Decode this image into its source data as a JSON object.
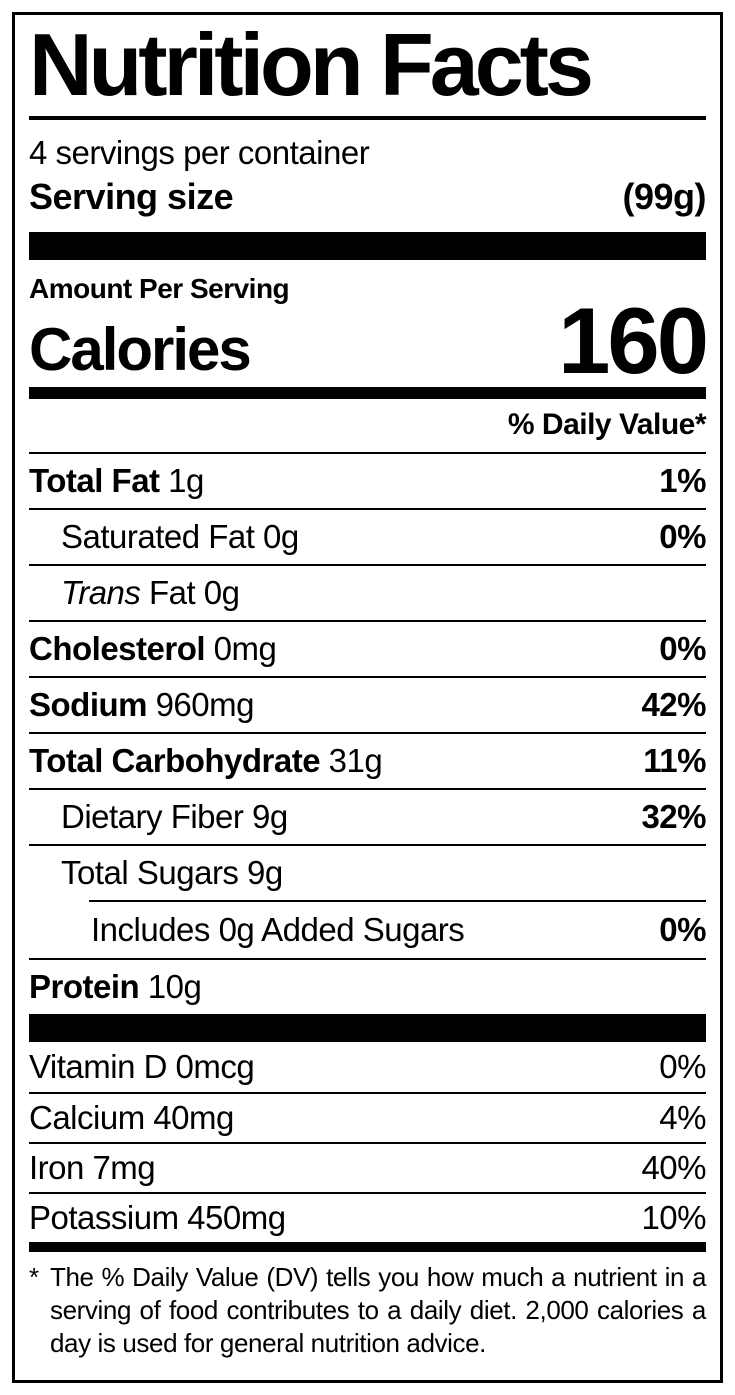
{
  "header": {
    "title": "Nutrition Facts",
    "servings_per_container": "4 servings per container",
    "serving_size_label": "Serving size",
    "serving_size_value": "(99g)"
  },
  "calories": {
    "section_label": "Amount Per Serving",
    "label": "Calories",
    "value": "160"
  },
  "daily_value_header": "% Daily Value*",
  "nutrients": [
    {
      "name": "Total Fat",
      "amount": "1g",
      "dv": "1%"
    },
    {
      "name": "Saturated Fat",
      "amount": "0g",
      "dv": "0%"
    },
    {
      "name_italic": "Trans",
      "name": "Fat",
      "amount": "0g",
      "dv": ""
    },
    {
      "name": "Cholesterol",
      "amount": "0mg",
      "dv": "0%"
    },
    {
      "name": "Sodium",
      "amount": "960mg",
      "dv": "42%"
    },
    {
      "name": "Total Carbohydrate",
      "amount": "31g",
      "dv": "11%"
    },
    {
      "name": "Dietary Fiber",
      "amount": "9g",
      "dv": "32%"
    },
    {
      "name": "Total Sugars",
      "amount": "9g",
      "dv": ""
    },
    {
      "name": "Includes 0g Added Sugars",
      "amount": "",
      "dv": "0%"
    },
    {
      "name": "Protein",
      "amount": "10g",
      "dv": ""
    }
  ],
  "micronutrients": [
    {
      "name": "Vitamin D",
      "amount": "0mcg",
      "dv": "0%"
    },
    {
      "name": "Calcium",
      "amount": "40mg",
      "dv": "4%"
    },
    {
      "name": "Iron",
      "amount": "7mg",
      "dv": "40%"
    },
    {
      "name": "Potassium",
      "amount": "450mg",
      "dv": "10%"
    }
  ],
  "footnote": {
    "asterisk": "*",
    "text": "The % Daily Value (DV) tells you how much a nutrient in a serving of food contributes to a daily diet. 2,000 calories a day is used for general nutrition advice."
  }
}
